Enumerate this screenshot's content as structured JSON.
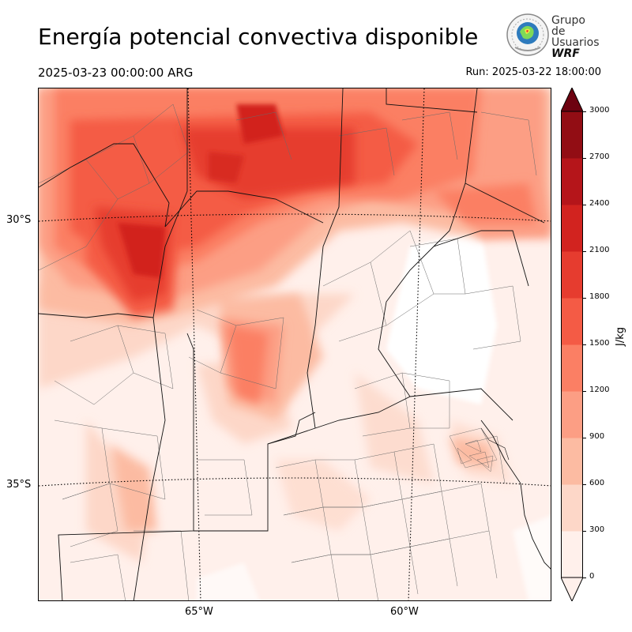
{
  "header": {
    "title": "Energía potencial convectiva disponible",
    "valid_time": "2025-03-23 00:00:00 ARG",
    "run_time": "Run: 2025-03-22 18:00:00"
  },
  "logo": {
    "line1": "Grupo de",
    "line2": "Usuarios",
    "line3": "WRF"
  },
  "map": {
    "variable": "CAPE",
    "lat_labels": [
      "30°S",
      "35°S"
    ],
    "lon_labels": [
      "65°W",
      "60°W"
    ]
  },
  "colorbar": {
    "units": "J/kg",
    "ticks": [
      "0",
      "300",
      "600",
      "900",
      "1200",
      "1500",
      "1800",
      "2100",
      "2400",
      "2700",
      "3000"
    ],
    "colors": [
      "#fff0eb",
      "#fdd7c8",
      "#fcbba2",
      "#fc9e84",
      "#fb7f64",
      "#f45b45",
      "#e63c2f",
      "#d2231f",
      "#b5151a",
      "#920d14",
      "#6d0210"
    ]
  }
}
